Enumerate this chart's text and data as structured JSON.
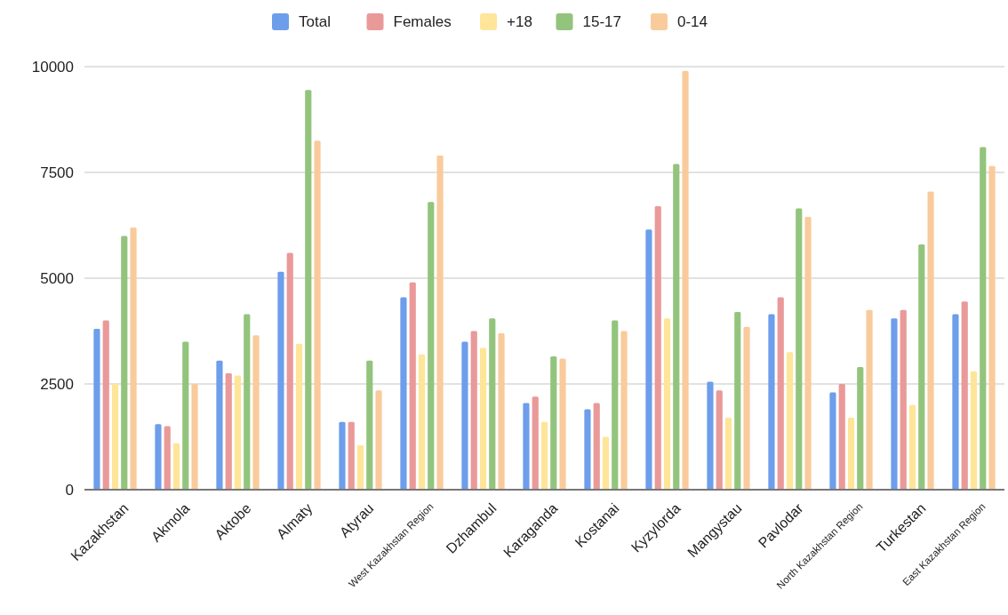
{
  "chart_data": {
    "type": "bar",
    "categories": [
      "Kazakhstan",
      "Akmola",
      "Aktobe",
      "Almaty",
      "Atyrau",
      "West Kazakhstan Region",
      "Dzhambul",
      "Karaganda",
      "Kostanai",
      "Kyzylorda",
      "Mangystau",
      "Pavlodar",
      "North Kazakhstan Region",
      "Turkestan",
      "East Kazakhstan Region"
    ],
    "series": [
      {
        "name": "Total",
        "color": "#6d9eeb",
        "values": [
          3800,
          1550,
          3050,
          5150,
          1600,
          4550,
          3500,
          2050,
          1900,
          6150,
          2550,
          4150,
          2300,
          4050,
          4150
        ]
      },
      {
        "name": "Females",
        "color": "#ea9999",
        "values": [
          4000,
          1500,
          2750,
          5600,
          1600,
          4900,
          3750,
          2200,
          2050,
          6700,
          2350,
          4550,
          2500,
          4250,
          4450
        ]
      },
      {
        "name": "+18",
        "color": "#ffe599",
        "values": [
          2500,
          1100,
          2700,
          3450,
          1050,
          3200,
          3350,
          1600,
          1250,
          4050,
          1700,
          3250,
          1700,
          2000,
          2800
        ]
      },
      {
        "name": "15-17",
        "color": "#93c47d",
        "values": [
          6000,
          3500,
          4150,
          9450,
          3050,
          6800,
          4050,
          3150,
          4000,
          7700,
          4200,
          6650,
          2900,
          5800,
          8100
        ]
      },
      {
        "name": "0-14",
        "color": "#f9cb9c",
        "values": [
          6200,
          2500,
          3650,
          8250,
          2350,
          7900,
          3700,
          3100,
          3750,
          9900,
          3850,
          6450,
          4250,
          7050,
          7650
        ]
      }
    ],
    "ylim": [
      0,
      10000
    ],
    "yticks": [
      0,
      2500,
      5000,
      7500,
      10000
    ],
    "grid": "y",
    "legend": "top"
  }
}
